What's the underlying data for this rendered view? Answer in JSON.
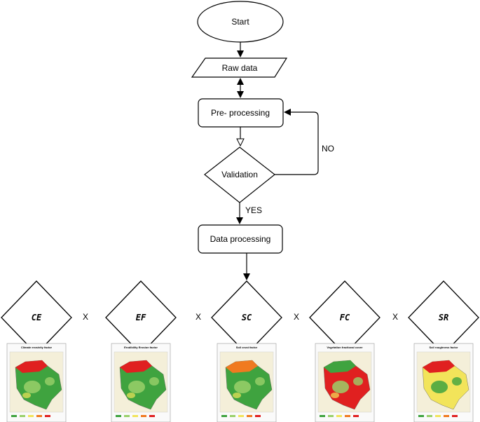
{
  "flowchart": {
    "start": "Start",
    "raw_data": "Raw data",
    "preprocessing": "Pre- processing",
    "validation": "Validation",
    "no_label": "NO",
    "yes_label": "YES",
    "data_processing": "Data processing"
  },
  "factors": [
    {
      "code": "CE",
      "map_title": "Climate erosivity factor"
    },
    {
      "code": "EF",
      "map_title": "Erodibility Erosion factor"
    },
    {
      "code": "SC",
      "map_title": "Soil crust factor"
    },
    {
      "code": "FC",
      "map_title": "Vegetation fractional cover"
    },
    {
      "code": "SR",
      "map_title": "Soil roughness factor"
    }
  ],
  "operator": "X",
  "colors": {
    "stroke": "#000000",
    "map_green": "#3fa33f",
    "map_light_green": "#9ad06a",
    "map_yellow": "#f2e45a",
    "map_red": "#e02020",
    "map_orange": "#f07a20"
  }
}
